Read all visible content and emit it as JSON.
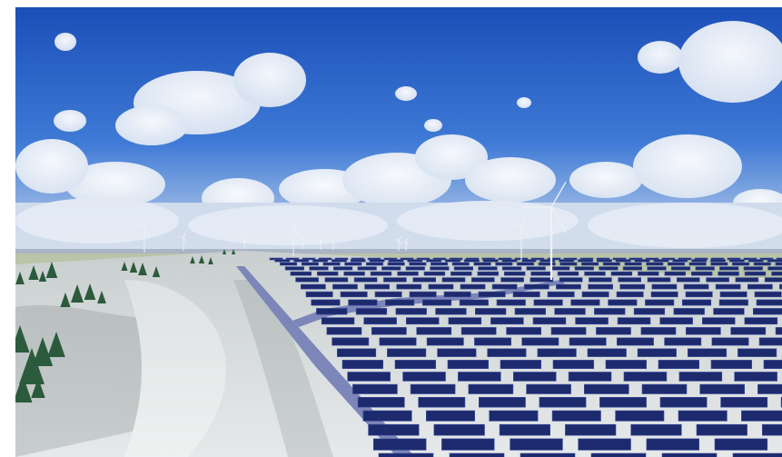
{
  "scene": {
    "subject": "wind-and-solar-farm-render",
    "colors": {
      "sky_top": "#1b4fb8",
      "sky_mid": "#3f7ad6",
      "sky_horizon": "#c9d8ec",
      "ground_light": "#dfe3e4",
      "ground_shadow": "#9ea6a6",
      "field_far": "#b9c4a8",
      "road": "#7d86b8",
      "panel": "#1d2a6e",
      "panel_edge": "#3d4f9c",
      "tree": "#2c5a3c",
      "turbine": "#eef1f4"
    }
  }
}
